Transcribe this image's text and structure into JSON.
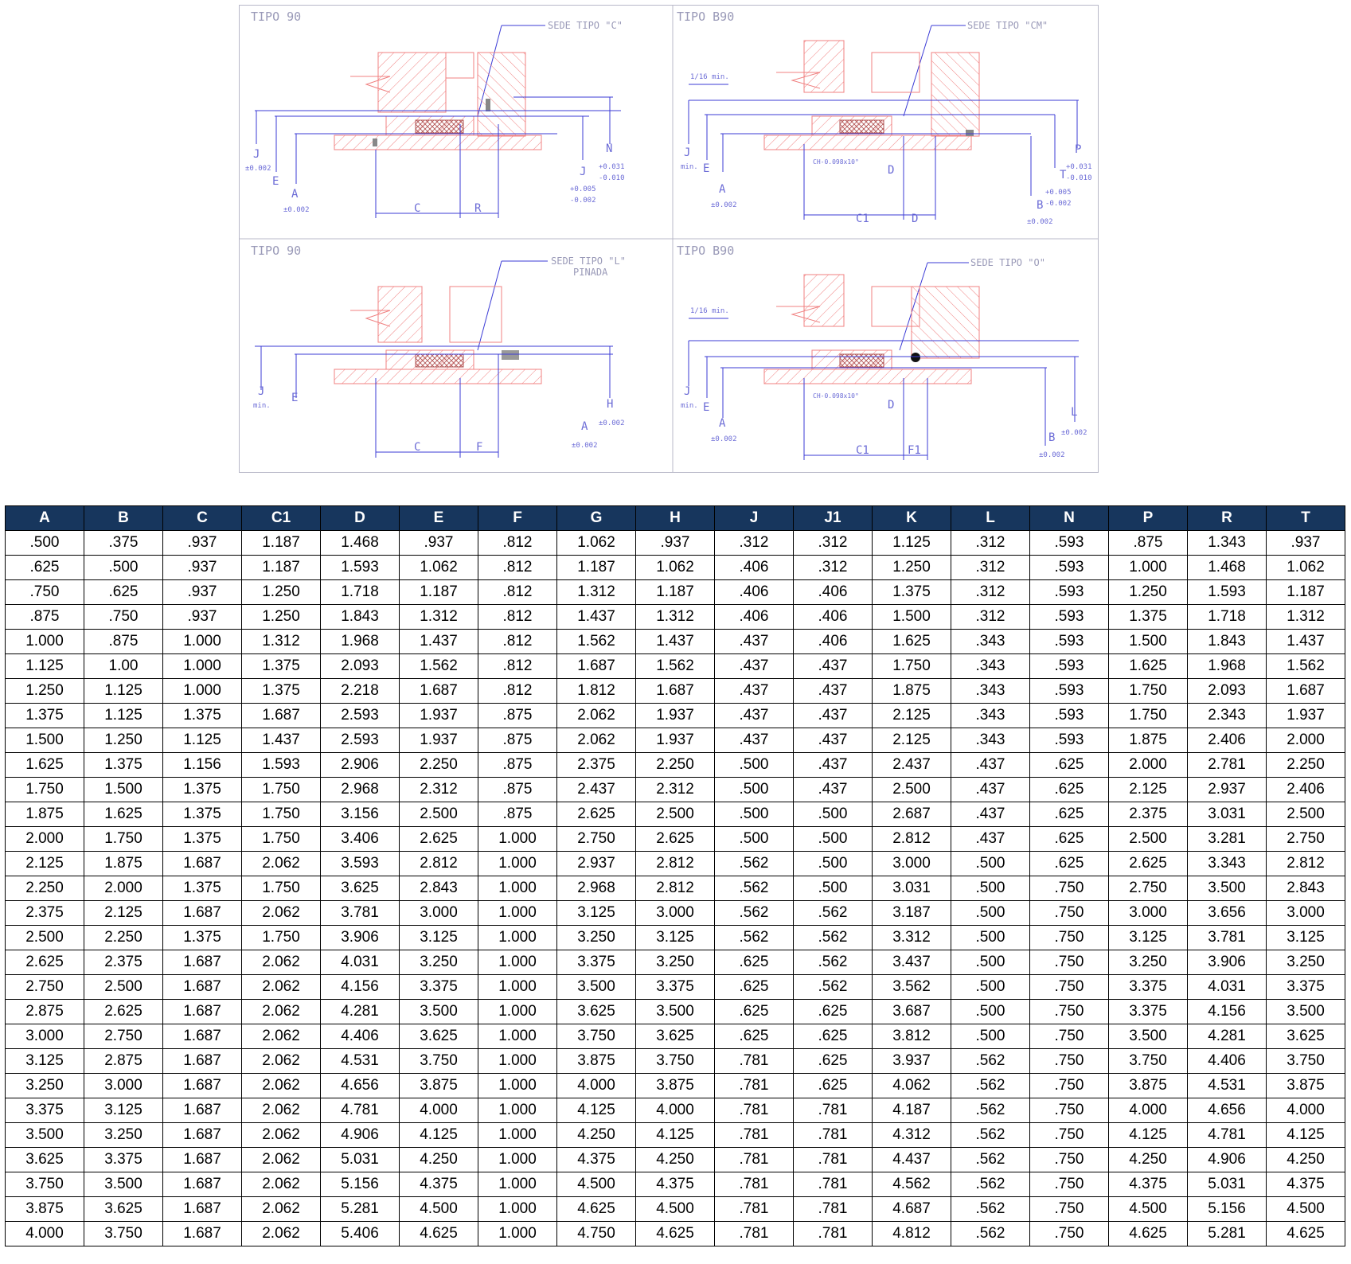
{
  "drawing": {
    "panels": [
      {
        "title": "TIPO 90",
        "seat_label": "SEDE TIPO \"C\"",
        "dims": [
          "J",
          "±0.002",
          "E",
          "A",
          "±0.002",
          "C",
          "R",
          "J",
          "+0.005",
          "-0.002",
          "N",
          "+0.031",
          "-0.010"
        ]
      },
      {
        "title": "TIPO B90",
        "seat_label": "SEDE TIPO \"CM\"",
        "dims": [
          "1/16 min.",
          "J",
          "min.",
          "E",
          "A",
          "±0.002",
          "CH-0.098x10°",
          "C1",
          "D",
          "D",
          "B",
          "±0.002",
          "T",
          "+0.005",
          "-0.002",
          "P",
          "+0.031",
          "-0.010"
        ]
      },
      {
        "title": "TIPO 90",
        "seat_label": "SEDE TIPO \"L\"",
        "seat_label_2": "PINADA",
        "dims": [
          "J",
          "min.",
          "E",
          "C",
          "F",
          "A",
          "±0.002",
          "H",
          "±0.002"
        ]
      },
      {
        "title": "TIPO B90",
        "seat_label": "SEDE TIPO \"O\"",
        "dims": [
          "1/16 min.",
          "J",
          "min.",
          "E",
          "A",
          "±0.002",
          "CH-0.098x10°",
          "C1",
          "F1",
          "D",
          "B",
          "±0.002",
          "L",
          "±0.002"
        ]
      }
    ]
  },
  "table": {
    "headers": [
      "A",
      "B",
      "C",
      "C1",
      "D",
      "E",
      "F",
      "G",
      "H",
      "J",
      "J1",
      "K",
      "L",
      "N",
      "P",
      "R",
      "T"
    ],
    "rows": [
      [
        ".500",
        ".375",
        ".937",
        "1.187",
        "1.468",
        ".937",
        ".812",
        "1.062",
        ".937",
        ".312",
        ".312",
        "1.125",
        ".312",
        ".593",
        ".875",
        "1.343",
        ".937"
      ],
      [
        ".625",
        ".500",
        ".937",
        "1.187",
        "1.593",
        "1.062",
        ".812",
        "1.187",
        "1.062",
        ".406",
        ".312",
        "1.250",
        ".312",
        ".593",
        "1.000",
        "1.468",
        "1.062"
      ],
      [
        ".750",
        ".625",
        ".937",
        "1.250",
        "1.718",
        "1.187",
        ".812",
        "1.312",
        "1.187",
        ".406",
        ".406",
        "1.375",
        ".312",
        ".593",
        "1.250",
        "1.593",
        "1.187"
      ],
      [
        ".875",
        ".750",
        ".937",
        "1.250",
        "1.843",
        "1.312",
        ".812",
        "1.437",
        "1.312",
        ".406",
        ".406",
        "1.500",
        ".312",
        ".593",
        "1.375",
        "1.718",
        "1.312"
      ],
      [
        "1.000",
        ".875",
        "1.000",
        "1.312",
        "1.968",
        "1.437",
        ".812",
        "1.562",
        "1.437",
        ".437",
        ".406",
        "1.625",
        ".343",
        ".593",
        "1.500",
        "1.843",
        "1.437"
      ],
      [
        "1.125",
        "1.00",
        "1.000",
        "1.375",
        "2.093",
        "1.562",
        ".812",
        "1.687",
        "1.562",
        ".437",
        ".437",
        "1.750",
        ".343",
        ".593",
        "1.625",
        "1.968",
        "1.562"
      ],
      [
        "1.250",
        "1.125",
        "1.000",
        "1.375",
        "2.218",
        "1.687",
        ".812",
        "1.812",
        "1.687",
        ".437",
        ".437",
        "1.875",
        ".343",
        ".593",
        "1.750",
        "2.093",
        "1.687"
      ],
      [
        "1.375",
        "1.125",
        "1.375",
        "1.687",
        "2.593",
        "1.937",
        ".875",
        "2.062",
        "1.937",
        ".437",
        ".437",
        "2.125",
        ".343",
        ".593",
        "1.750",
        "2.343",
        "1.937"
      ],
      [
        "1.500",
        "1.250",
        "1.125",
        "1.437",
        "2.593",
        "1.937",
        ".875",
        "2.062",
        "1.937",
        ".437",
        ".437",
        "2.125",
        ".343",
        ".593",
        "1.875",
        "2.406",
        "2.000"
      ],
      [
        "1.625",
        "1.375",
        "1.156",
        "1.593",
        "2.906",
        "2.250",
        ".875",
        "2.375",
        "2.250",
        ".500",
        ".437",
        "2.437",
        ".437",
        ".625",
        "2.000",
        "2.781",
        "2.250"
      ],
      [
        "1.750",
        "1.500",
        "1.375",
        "1.750",
        "2.968",
        "2.312",
        ".875",
        "2.437",
        "2.312",
        ".500",
        ".437",
        "2.500",
        ".437",
        ".625",
        "2.125",
        "2.937",
        "2.406"
      ],
      [
        "1.875",
        "1.625",
        "1.375",
        "1.750",
        "3.156",
        "2.500",
        ".875",
        "2.625",
        "2.500",
        ".500",
        ".500",
        "2.687",
        ".437",
        ".625",
        "2.375",
        "3.031",
        "2.500"
      ],
      [
        "2.000",
        "1.750",
        "1.375",
        "1.750",
        "3.406",
        "2.625",
        "1.000",
        "2.750",
        "2.625",
        ".500",
        ".500",
        "2.812",
        ".437",
        ".625",
        "2.500",
        "3.281",
        "2.750"
      ],
      [
        "2.125",
        "1.875",
        "1.687",
        "2.062",
        "3.593",
        "2.812",
        "1.000",
        "2.937",
        "2.812",
        ".562",
        ".500",
        "3.000",
        ".500",
        ".625",
        "2.625",
        "3.343",
        "2.812"
      ],
      [
        "2.250",
        "2.000",
        "1.375",
        "1.750",
        "3.625",
        "2.843",
        "1.000",
        "2.968",
        "2.812",
        ".562",
        ".500",
        "3.031",
        ".500",
        ".750",
        "2.750",
        "3.500",
        "2.843"
      ],
      [
        "2.375",
        "2.125",
        "1.687",
        "2.062",
        "3.781",
        "3.000",
        "1.000",
        "3.125",
        "3.000",
        ".562",
        ".562",
        "3.187",
        ".500",
        ".750",
        "3.000",
        "3.656",
        "3.000"
      ],
      [
        "2.500",
        "2.250",
        "1.375",
        "1.750",
        "3.906",
        "3.125",
        "1.000",
        "3.250",
        "3.125",
        ".562",
        ".562",
        "3.312",
        ".500",
        ".750",
        "3.125",
        "3.781",
        "3.125"
      ],
      [
        "2.625",
        "2.375",
        "1.687",
        "2.062",
        "4.031",
        "3.250",
        "1.000",
        "3.375",
        "3.250",
        ".625",
        ".562",
        "3.437",
        ".500",
        ".750",
        "3.250",
        "3.906",
        "3.250"
      ],
      [
        "2.750",
        "2.500",
        "1.687",
        "2.062",
        "4.156",
        "3.375",
        "1.000",
        "3.500",
        "3.375",
        ".625",
        ".562",
        "3.562",
        ".500",
        ".750",
        "3.375",
        "4.031",
        "3.375"
      ],
      [
        "2.875",
        "2.625",
        "1.687",
        "2.062",
        "4.281",
        "3.500",
        "1.000",
        "3.625",
        "3.500",
        ".625",
        ".625",
        "3.687",
        ".500",
        ".750",
        "3.375",
        "4.156",
        "3.500"
      ],
      [
        "3.000",
        "2.750",
        "1.687",
        "2.062",
        "4.406",
        "3.625",
        "1.000",
        "3.750",
        "3.625",
        ".625",
        ".625",
        "3.812",
        ".500",
        ".750",
        "3.500",
        "4.281",
        "3.625"
      ],
      [
        "3.125",
        "2.875",
        "1.687",
        "2.062",
        "4.531",
        "3.750",
        "1.000",
        "3.875",
        "3.750",
        ".781",
        ".625",
        "3.937",
        ".562",
        ".750",
        "3.750",
        "4.406",
        "3.750"
      ],
      [
        "3.250",
        "3.000",
        "1.687",
        "2.062",
        "4.656",
        "3.875",
        "1.000",
        "4.000",
        "3.875",
        ".781",
        ".625",
        "4.062",
        ".562",
        ".750",
        "3.875",
        "4.531",
        "3.875"
      ],
      [
        "3.375",
        "3.125",
        "1.687",
        "2.062",
        "4.781",
        "4.000",
        "1.000",
        "4.125",
        "4.000",
        ".781",
        ".781",
        "4.187",
        ".562",
        ".750",
        "4.000",
        "4.656",
        "4.000"
      ],
      [
        "3.500",
        "3.250",
        "1.687",
        "2.062",
        "4.906",
        "4.125",
        "1.000",
        "4.250",
        "4.125",
        ".781",
        ".781",
        "4.312",
        ".562",
        ".750",
        "4.125",
        "4.781",
        "4.125"
      ],
      [
        "3.625",
        "3.375",
        "1.687",
        "2.062",
        "5.031",
        "4.250",
        "1.000",
        "4.375",
        "4.250",
        ".781",
        ".781",
        "4.437",
        ".562",
        ".750",
        "4.250",
        "4.906",
        "4.250"
      ],
      [
        "3.750",
        "3.500",
        "1.687",
        "2.062",
        "5.156",
        "4.375",
        "1.000",
        "4.500",
        "4.375",
        ".781",
        ".781",
        "4.562",
        ".562",
        ".750",
        "4.375",
        "5.031",
        "4.375"
      ],
      [
        "3.875",
        "3.625",
        "1.687",
        "2.062",
        "5.281",
        "4.500",
        "1.000",
        "4.625",
        "4.500",
        ".781",
        ".781",
        "4.687",
        ".562",
        ".750",
        "4.500",
        "5.156",
        "4.500"
      ],
      [
        "4.000",
        "3.750",
        "1.687",
        "2.062",
        "5.406",
        "4.625",
        "1.000",
        "4.750",
        "4.625",
        ".781",
        ".781",
        "4.812",
        ".562",
        ".750",
        "4.625",
        "5.281",
        "4.625"
      ]
    ]
  },
  "colors": {
    "header_bg": "#17365d",
    "header_text": "#ffffff",
    "cad_part": "#f08080",
    "cad_dimension": "#3b3bd6",
    "cad_frame": "#b8b8c8"
  }
}
